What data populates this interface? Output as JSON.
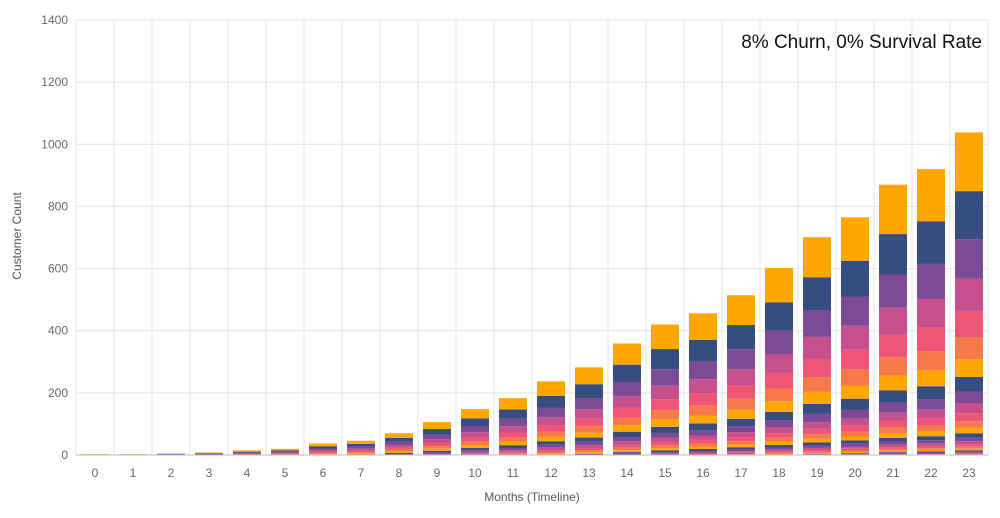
{
  "chart_data": {
    "type": "bar",
    "stacked": true,
    "title": "8% Churn, 0% Survival Rate",
    "xlabel": "Months (Timeline)",
    "ylabel": "Customer Count",
    "ylim": [
      0,
      1400
    ],
    "yticks": [
      0,
      200,
      400,
      600,
      800,
      1000,
      1200,
      1400
    ],
    "grid": true,
    "categories": [
      "0",
      "1",
      "2",
      "3",
      "4",
      "5",
      "6",
      "7",
      "8",
      "9",
      "10",
      "11",
      "12",
      "13",
      "14",
      "15",
      "16",
      "17",
      "18",
      "19",
      "20",
      "21",
      "22",
      "23"
    ],
    "totals": [
      3,
      3,
      5,
      8,
      15,
      20,
      37,
      46,
      70,
      106,
      148,
      183,
      237,
      282,
      359,
      420,
      456,
      514,
      602,
      701,
      765,
      870,
      920,
      1038
    ],
    "palette": [
      "#f67a4a",
      "#ef5675",
      "#c5508d",
      "#7c4a97",
      "#374c80",
      "#ffa600"
    ]
  }
}
